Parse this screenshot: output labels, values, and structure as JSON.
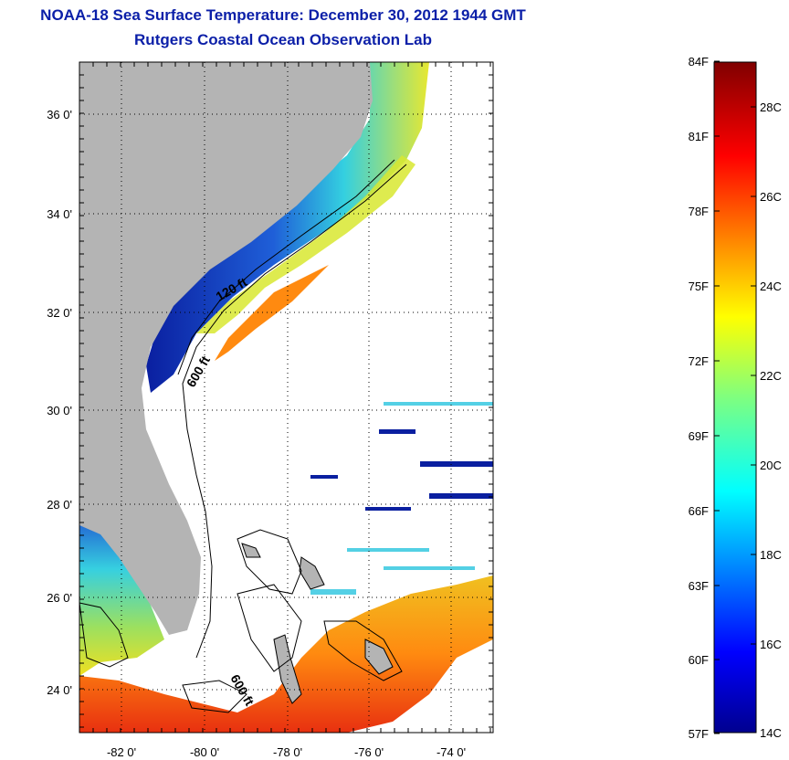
{
  "title": {
    "line1": "NOAA-18 Sea Surface Temperature:  December 30, 2012 1944 GMT",
    "line2": "Rutgers Coastal Ocean Observation Lab"
  },
  "map": {
    "lat_labels": [
      "36 0'",
      "34 0'",
      "32 0'",
      "30 0'",
      "28 0'",
      "26 0'",
      "24 0'"
    ],
    "lon_labels": [
      "-82 0'",
      "-80 0'",
      "-78 0'",
      "-76 0'",
      "-74 0'"
    ],
    "contour_labels": [
      "120 ft",
      "600 ft",
      "600 ft"
    ],
    "colors": {
      "land": "#b4b4b4",
      "cold": "#0a1fa0",
      "cool": "#2fd0e0",
      "mild": "#f0e020",
      "warm": "#ff7a10",
      "hot": "#e02010"
    }
  },
  "colorbar": {
    "f_labels": [
      "84F",
      "81F",
      "78F",
      "75F",
      "72F",
      "69F",
      "66F",
      "63F",
      "60F",
      "57F"
    ],
    "c_labels": [
      "28C",
      "26C",
      "24C",
      "22C",
      "20C",
      "18C",
      "16C",
      "14C"
    ]
  }
}
